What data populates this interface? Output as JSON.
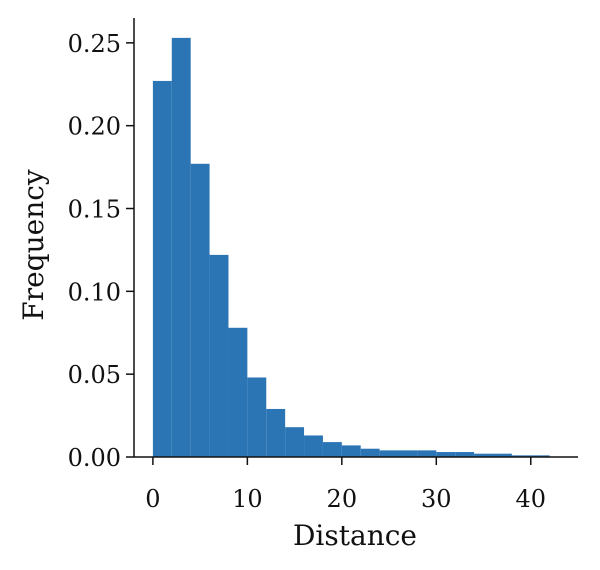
{
  "chart_data": {
    "type": "bar",
    "title": "",
    "xlabel": "Distance",
    "ylabel": "Frequency",
    "xlim": [
      -2,
      45
    ],
    "ylim": [
      0,
      0.265
    ],
    "x_ticks": [
      0,
      10,
      20,
      30,
      40
    ],
    "x_tick_labels": [
      "0",
      "10",
      "20",
      "30",
      "40"
    ],
    "y_ticks": [
      0.0,
      0.05,
      0.1,
      0.15,
      0.2,
      0.25
    ],
    "y_tick_labels": [
      "0.00",
      "0.05",
      "0.10",
      "0.15",
      "0.20",
      "0.25"
    ],
    "grid": false,
    "legend": "none",
    "color": "#2b75b5",
    "bin_edges": [
      0,
      2,
      4,
      6,
      8,
      10,
      12,
      14,
      16,
      18,
      20,
      22,
      24,
      26,
      28,
      30,
      32,
      34,
      36,
      38,
      40,
      42
    ],
    "values": [
      0.227,
      0.253,
      0.177,
      0.122,
      0.078,
      0.048,
      0.029,
      0.018,
      0.013,
      0.009,
      0.007,
      0.005,
      0.004,
      0.004,
      0.004,
      0.003,
      0.003,
      0.002,
      0.002,
      0.001,
      0.001
    ]
  }
}
